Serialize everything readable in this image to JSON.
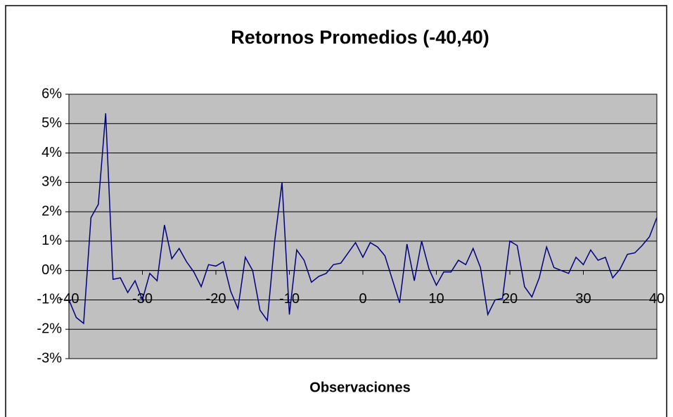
{
  "chart_data": {
    "type": "line",
    "title": "Retornos Promedios (-40,40)",
    "x_label": "Observaciones",
    "x": [
      -40,
      -39,
      -38,
      -37,
      -36,
      -35,
      -34,
      -33,
      -32,
      -31,
      -30,
      -29,
      -28,
      -27,
      -26,
      -25,
      -24,
      -23,
      -22,
      -21,
      -20,
      -19,
      -18,
      -17,
      -16,
      -15,
      -14,
      -13,
      -12,
      -11,
      -10,
      -9,
      -8,
      -7,
      -6,
      -5,
      -4,
      -3,
      -2,
      -1,
      0,
      1,
      2,
      3,
      4,
      5,
      6,
      7,
      8,
      9,
      10,
      11,
      12,
      13,
      14,
      15,
      16,
      17,
      18,
      19,
      20,
      21,
      22,
      23,
      24,
      25,
      26,
      27,
      28,
      29,
      30,
      31,
      32,
      33,
      34,
      35,
      36,
      37,
      38,
      39,
      40
    ],
    "series": [
      {
        "name": "Retornos",
        "color": "#000080",
        "values": [
          -1.0,
          -1.6,
          -1.8,
          1.8,
          2.25,
          5.35,
          -0.3,
          -0.25,
          -0.75,
          -0.35,
          -1.0,
          -0.1,
          -0.35,
          1.55,
          0.4,
          0.75,
          0.3,
          -0.05,
          -0.55,
          0.2,
          0.15,
          0.3,
          -0.7,
          -1.3,
          0.45,
          0.0,
          -1.35,
          -1.7,
          1.0,
          3.0,
          -1.5,
          0.7,
          0.35,
          -0.4,
          -0.2,
          -0.1,
          0.2,
          0.25,
          0.6,
          0.95,
          0.45,
          0.95,
          0.8,
          0.5,
          -0.3,
          -1.1,
          0.9,
          -0.35,
          1.0,
          0.05,
          -0.5,
          -0.05,
          -0.05,
          0.35,
          0.2,
          0.75,
          0.1,
          -1.5,
          -1.0,
          -0.95,
          1.0,
          0.85,
          -0.55,
          -0.9,
          -0.25,
          0.8,
          0.1,
          0.0,
          -0.1,
          0.45,
          0.2,
          0.7,
          0.35,
          0.45,
          -0.25,
          0.05,
          0.55,
          0.6,
          0.85,
          1.15,
          1.8
        ]
      }
    ],
    "xlim": [
      -40,
      40
    ],
    "xticks": [
      -40,
      -30,
      -20,
      -10,
      0,
      10,
      20,
      30,
      40
    ],
    "ylim": [
      -3,
      6
    ],
    "yticks": [
      {
        "value": -3,
        "label": "-3%"
      },
      {
        "value": -2,
        "label": "-2%"
      },
      {
        "value": -1,
        "label": "-1%"
      },
      {
        "value": 0,
        "label": "0%"
      },
      {
        "value": 1,
        "label": "1%"
      },
      {
        "value": 2,
        "label": "2%"
      },
      {
        "value": 3,
        "label": "3%"
      },
      {
        "value": 4,
        "label": "4%"
      },
      {
        "value": 5,
        "label": "5%"
      },
      {
        "value": 6,
        "label": "6%"
      }
    ],
    "grid": true
  }
}
